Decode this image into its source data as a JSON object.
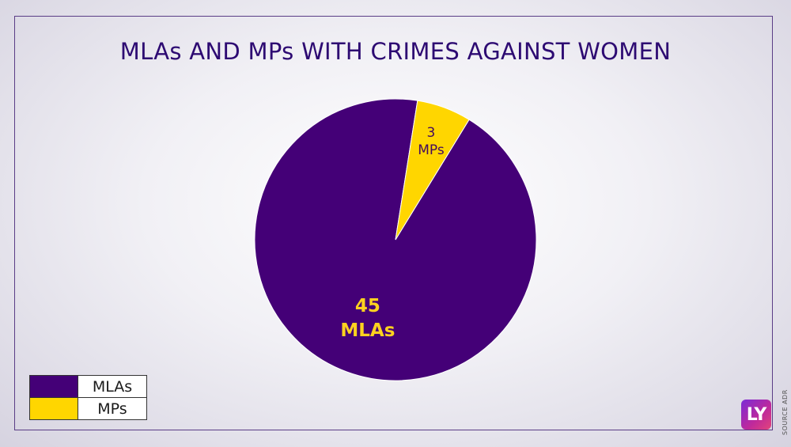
{
  "chart_data": {
    "type": "pie",
    "title": "MLAs AND MPs WITH CRIMES AGAINST WOMEN",
    "slices": [
      {
        "name": "MLAs",
        "value": 45,
        "label_value": "45",
        "label_unit": "MLAs",
        "color": "#440077",
        "label_color": "#ffd21f"
      },
      {
        "name": "MPs",
        "value": 3,
        "label_value": "3",
        "label_unit": "MPs",
        "color": "#ffd600",
        "label_color": "#440a5e"
      }
    ],
    "legend_placement": "bottom-left"
  },
  "legend": {
    "items": [
      {
        "label": "MLAs",
        "color": "#440077"
      },
      {
        "label": "MPs",
        "color": "#ffd600"
      }
    ]
  },
  "source": "SOURCE ADR",
  "logo": {
    "text": "LY"
  }
}
